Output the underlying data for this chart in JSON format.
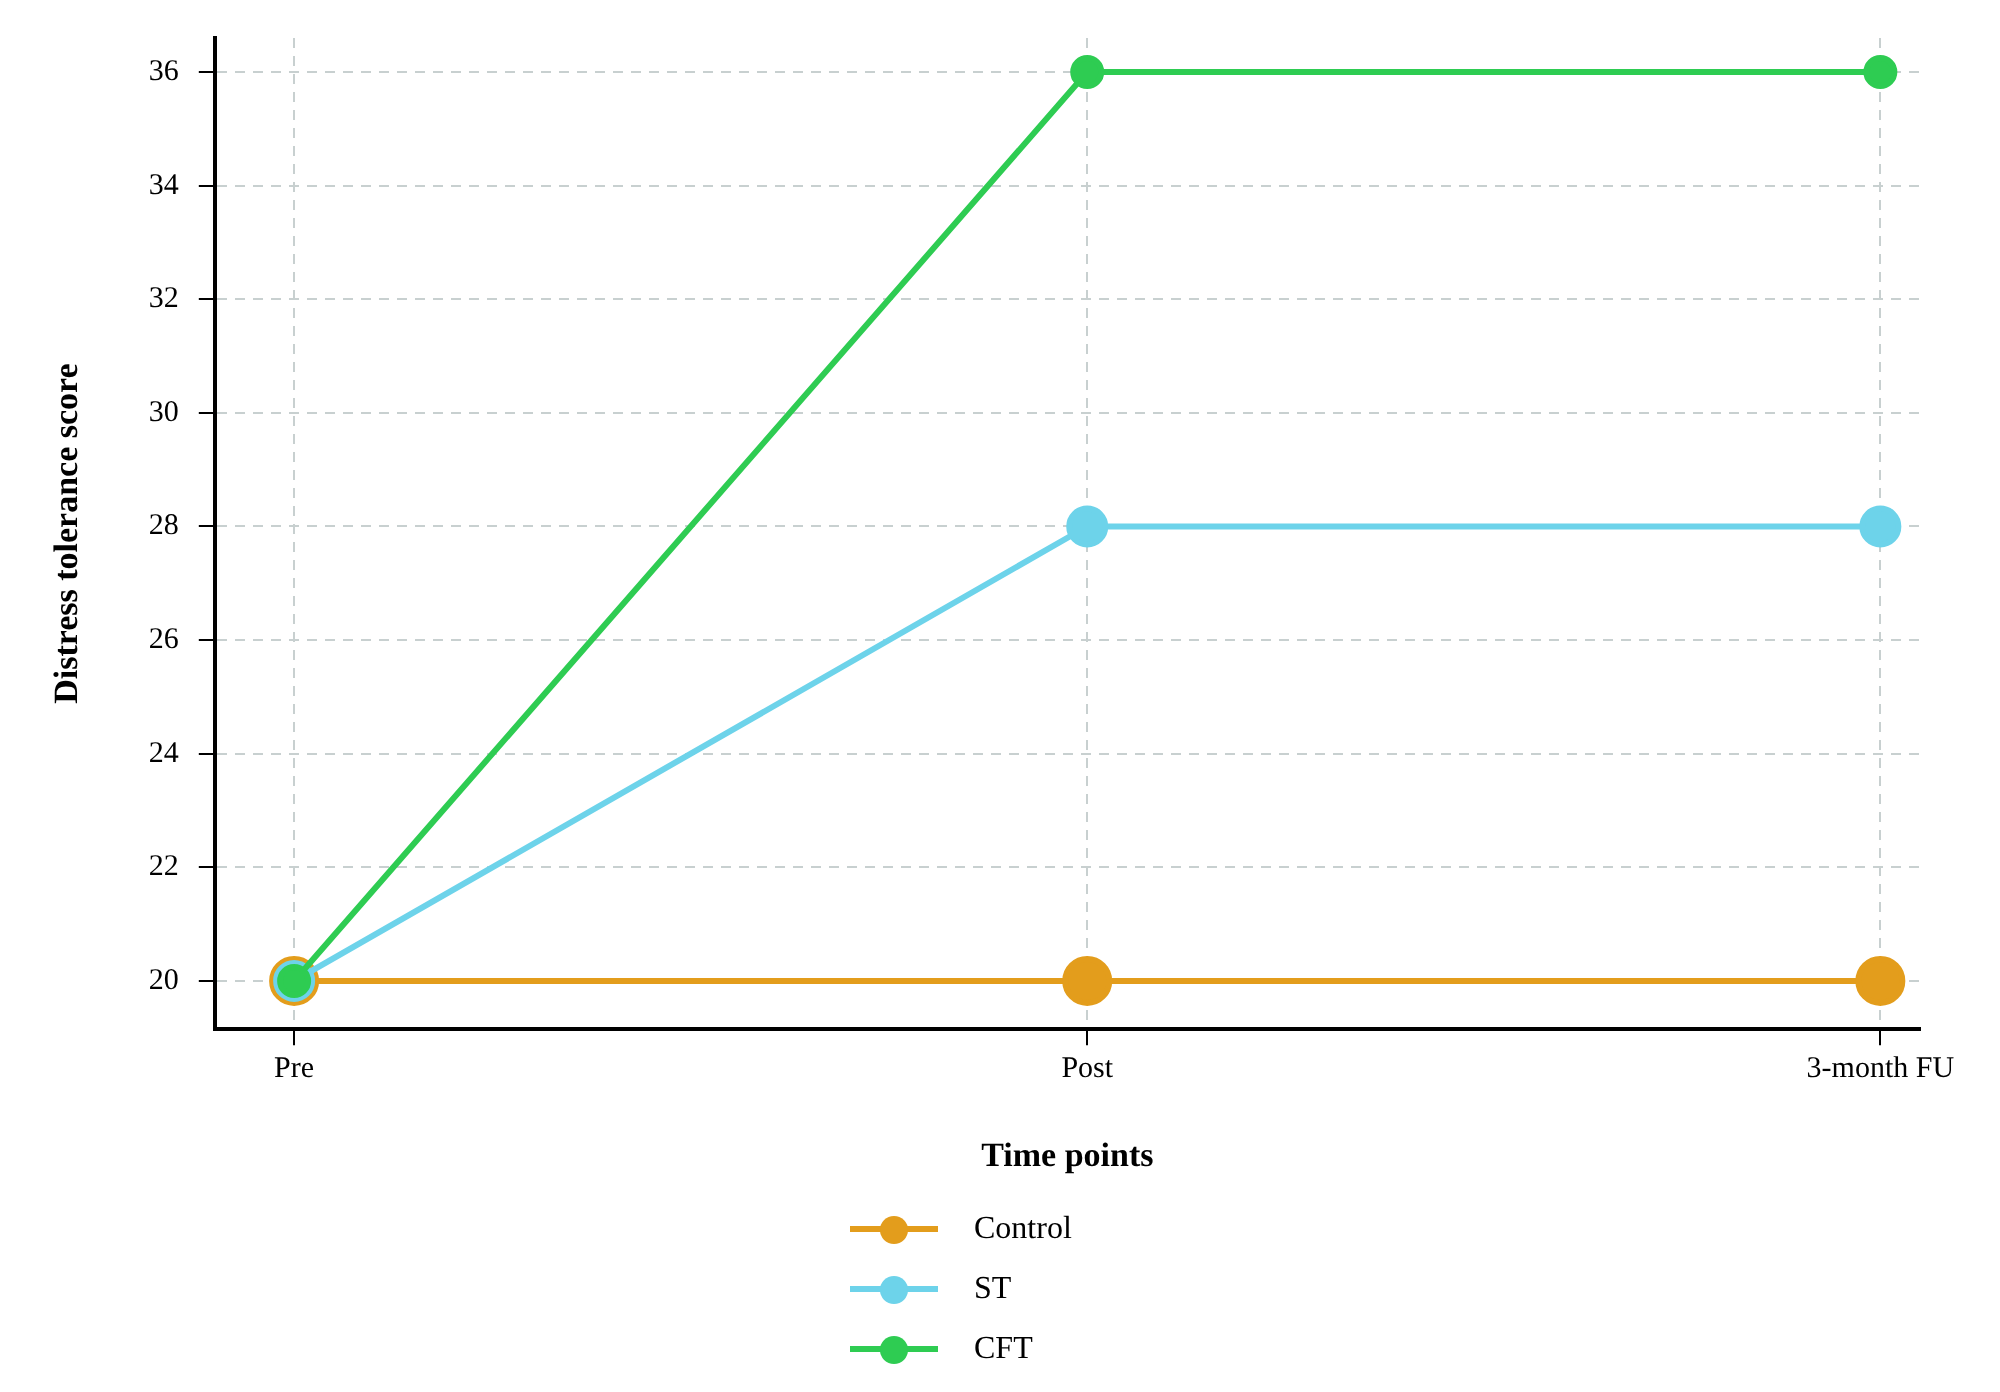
{
  "chart_data": {
    "type": "line",
    "xlabel": "Time points",
    "ylabel": "Distress tolerance score",
    "categories": [
      "Pre",
      "Post",
      "3-month FU"
    ],
    "series": [
      {
        "name": "Control",
        "color": "#e39d1c",
        "values": [
          20,
          20,
          20
        ]
      },
      {
        "name": "ST",
        "color": "#6dd3ea",
        "values": [
          20,
          28,
          28
        ]
      },
      {
        "name": "CFT",
        "color": "#2ecc52",
        "values": [
          20,
          36,
          36
        ]
      }
    ],
    "ylim": [
      19.15,
      36.6
    ],
    "yticks": [
      20,
      22,
      24,
      26,
      28,
      30,
      32,
      34,
      36
    ],
    "grid": true,
    "legend": "bottom",
    "marker": "circle",
    "line_style": "solid"
  }
}
